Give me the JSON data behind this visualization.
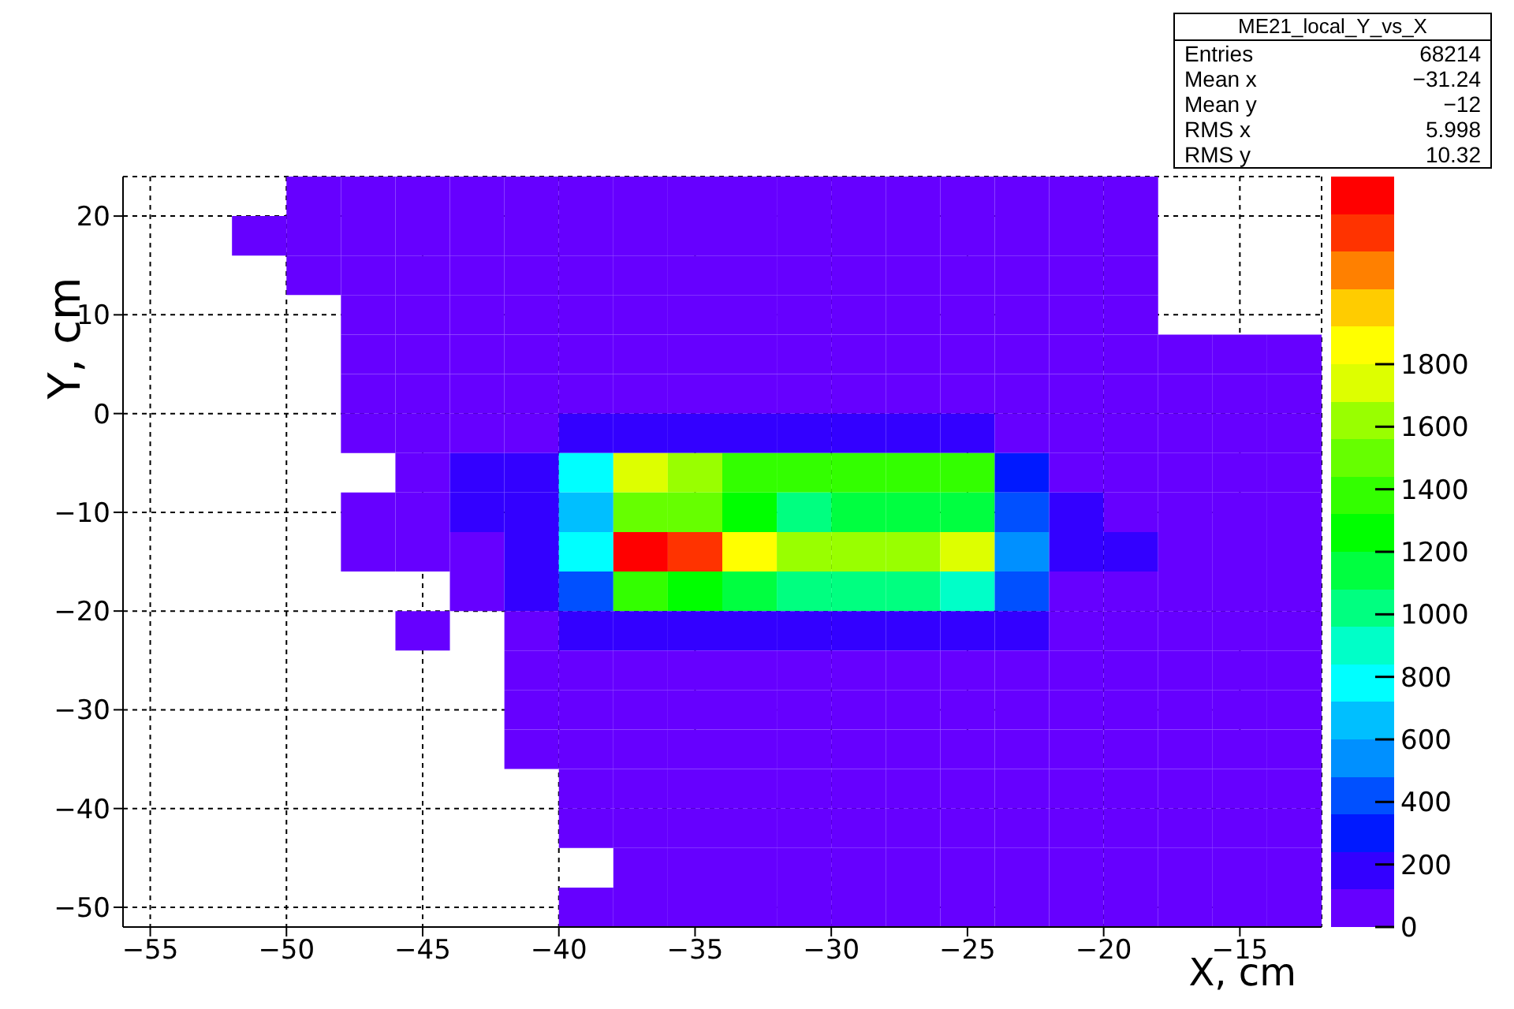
{
  "chart_data": {
    "type": "heatmap",
    "xlabel": "X, cm",
    "ylabel": "Y, cm",
    "xlim": [
      -56,
      -12
    ],
    "ylim": [
      -52,
      24
    ],
    "xticks": [
      {
        "value": -55,
        "label": "−55"
      },
      {
        "value": -50,
        "label": "−50"
      },
      {
        "value": -45,
        "label": "−45"
      },
      {
        "value": -40,
        "label": "−40"
      },
      {
        "value": -35,
        "label": "−35"
      },
      {
        "value": -30,
        "label": "−30"
      },
      {
        "value": -25,
        "label": "−25"
      },
      {
        "value": -20,
        "label": "−20"
      },
      {
        "value": -15,
        "label": "−15"
      }
    ],
    "yticks": [
      {
        "value": -50,
        "label": "−50"
      },
      {
        "value": -40,
        "label": "−40"
      },
      {
        "value": -30,
        "label": "−30"
      },
      {
        "value": -20,
        "label": "−20"
      },
      {
        "value": -10,
        "label": "−10"
      },
      {
        "value": 0,
        "label": "0"
      },
      {
        "value": 10,
        "label": "10"
      },
      {
        "value": 20,
        "label": "20"
      }
    ],
    "grid": true,
    "clim": [
      0,
      2400
    ],
    "cticks": [
      {
        "value": 0,
        "label": "0"
      },
      {
        "value": 200,
        "label": "200"
      },
      {
        "value": 400,
        "label": "400"
      },
      {
        "value": 600,
        "label": "600"
      },
      {
        "value": 800,
        "label": "800"
      },
      {
        "value": 1000,
        "label": "1000"
      },
      {
        "value": 1200,
        "label": "1200"
      },
      {
        "value": 1400,
        "label": "1400"
      },
      {
        "value": 1600,
        "label": "1600"
      },
      {
        "value": 1800,
        "label": "1800"
      }
    ],
    "annotations": [
      "ME21_local_Y_vs_X",
      "Entries 68214",
      "Mean x −31.24",
      "Mean y −12",
      "RMS x 5.998",
      "RMS y 10.32"
    ],
    "cells": [
      [
        null,
        null,
        null,
        60,
        60,
        60,
        60,
        60,
        60,
        60,
        60,
        60,
        60,
        60,
        60,
        60,
        60,
        60,
        60,
        null,
        null,
        null
      ],
      [
        null,
        null,
        60,
        60,
        60,
        60,
        60,
        60,
        60,
        60,
        60,
        60,
        60,
        60,
        60,
        60,
        60,
        60,
        60,
        null,
        null,
        null
      ],
      [
        null,
        null,
        null,
        60,
        60,
        60,
        60,
        60,
        60,
        60,
        60,
        60,
        60,
        60,
        60,
        60,
        60,
        60,
        60,
        null,
        null,
        null
      ],
      [
        null,
        null,
        null,
        null,
        60,
        60,
        60,
        60,
        60,
        60,
        60,
        60,
        60,
        60,
        60,
        60,
        60,
        60,
        60,
        null,
        null,
        null
      ],
      [
        null,
        null,
        null,
        null,
        60,
        60,
        60,
        60,
        60,
        60,
        60,
        60,
        60,
        60,
        60,
        60,
        60,
        60,
        60,
        60,
        60,
        60
      ],
      [
        null,
        null,
        null,
        null,
        60,
        60,
        60,
        60,
        60,
        60,
        60,
        60,
        60,
        60,
        60,
        60,
        60,
        60,
        60,
        60,
        60,
        60
      ],
      [
        null,
        null,
        null,
        null,
        60,
        60,
        60,
        60,
        180,
        180,
        180,
        180,
        180,
        180,
        180,
        180,
        60,
        60,
        60,
        60,
        60,
        60
      ],
      [
        null,
        null,
        null,
        null,
        null,
        60,
        180,
        180,
        780,
        1740,
        1620,
        1380,
        1380,
        1380,
        1380,
        1380,
        300,
        60,
        60,
        60,
        60,
        60
      ],
      [
        null,
        null,
        null,
        null,
        60,
        60,
        180,
        180,
        660,
        1500,
        1500,
        1260,
        1020,
        1140,
        1140,
        1140,
        420,
        180,
        60,
        60,
        60,
        60
      ],
      [
        null,
        null,
        null,
        null,
        60,
        60,
        60,
        180,
        780,
        2340,
        2220,
        1860,
        1620,
        1620,
        1620,
        1740,
        540,
        180,
        180,
        60,
        60,
        60
      ],
      [
        null,
        null,
        null,
        null,
        null,
        null,
        60,
        180,
        420,
        1380,
        1260,
        1140,
        1020,
        1020,
        1020,
        900,
        420,
        60,
        60,
        60,
        60,
        60
      ],
      [
        null,
        null,
        null,
        null,
        null,
        60,
        null,
        60,
        180,
        180,
        180,
        180,
        180,
        180,
        180,
        180,
        180,
        60,
        60,
        60,
        60,
        60
      ],
      [
        null,
        null,
        null,
        null,
        null,
        null,
        null,
        60,
        60,
        60,
        60,
        60,
        60,
        60,
        60,
        60,
        60,
        60,
        60,
        60,
        60,
        60
      ],
      [
        null,
        null,
        null,
        null,
        null,
        null,
        null,
        60,
        60,
        60,
        60,
        60,
        60,
        60,
        60,
        60,
        60,
        60,
        60,
        60,
        60,
        60
      ],
      [
        null,
        null,
        null,
        null,
        null,
        null,
        null,
        60,
        60,
        60,
        60,
        60,
        60,
        60,
        60,
        60,
        60,
        60,
        60,
        60,
        60,
        60
      ],
      [
        null,
        null,
        null,
        null,
        null,
        null,
        null,
        null,
        60,
        60,
        60,
        60,
        60,
        60,
        60,
        60,
        60,
        60,
        60,
        60,
        60,
        60
      ],
      [
        null,
        null,
        null,
        null,
        null,
        null,
        null,
        null,
        60,
        60,
        60,
        60,
        60,
        60,
        60,
        60,
        60,
        60,
        60,
        60,
        60,
        60
      ],
      [
        null,
        null,
        null,
        null,
        null,
        null,
        null,
        null,
        null,
        60,
        60,
        60,
        60,
        60,
        60,
        60,
        60,
        60,
        60,
        60,
        60,
        60
      ],
      [
        null,
        null,
        null,
        null,
        null,
        null,
        null,
        null,
        60,
        60,
        60,
        60,
        60,
        60,
        60,
        60,
        60,
        60,
        60,
        60,
        60,
        60
      ]
    ]
  }
}
